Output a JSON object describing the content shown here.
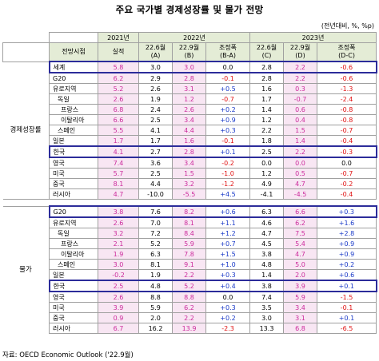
{
  "title": "주요 국가별 경제성장률 및 물가 전망",
  "unit": "(전년대비, %, %p)",
  "headers": {
    "year2021": "2021년",
    "year2022": "2022년",
    "year2023": "2023년",
    "outlook": "전망시점",
    "actual": "실적",
    "c22_6": "22.6월\n(A)",
    "c22_9": "22.9월\n(B)",
    "adj_ba": "조정폭\n(B-A)",
    "c23_6": "22.6월\n(C)",
    "c23_9": "22.9월\n(D)",
    "adj_dc": "조정폭\n(D-C)"
  },
  "sections": [
    {
      "label": "경제성장률",
      "rows": [
        {
          "name": "세계",
          "v": [
            "5.8",
            "3.0",
            "3.0",
            "0.0",
            "2.8",
            "2.2",
            "-0.6"
          ]
        },
        {
          "name": "G20",
          "v": [
            "6.2",
            "2.9",
            "2.8",
            "-0.1",
            "2.8",
            "2.2",
            "-0.6"
          ]
        },
        {
          "name": "유로지역",
          "v": [
            "5.2",
            "2.6",
            "3.1",
            "+0.5",
            "1.6",
            "0.3",
            "-1.3"
          ]
        },
        {
          "name": "독일",
          "v": [
            "2.6",
            "1.9",
            "1.2",
            "-0.7",
            "1.7",
            "-0.7",
            "-2.4"
          ]
        },
        {
          "name": "프랑스",
          "v": [
            "6.8",
            "2.4",
            "2.6",
            "+0.2",
            "1.4",
            "0.6",
            "-0.8"
          ]
        },
        {
          "name": "이탈리아",
          "v": [
            "6.6",
            "2.5",
            "3.4",
            "+0.9",
            "1.2",
            "0.4",
            "-0.8"
          ]
        },
        {
          "name": "스페인",
          "v": [
            "5.5",
            "4.1",
            "4.4",
            "+0.3",
            "2.2",
            "1.5",
            "-0.7"
          ]
        },
        {
          "name": "일본",
          "v": [
            "1.7",
            "1.7",
            "1.6",
            "-0.1",
            "1.8",
            "1.4",
            "-0.4"
          ]
        },
        {
          "name": "한국",
          "v": [
            "4.1",
            "2.7",
            "2.8",
            "+0.1",
            "2.5",
            "2.2",
            "-0.3"
          ]
        },
        {
          "name": "영국",
          "v": [
            "7.4",
            "3.6",
            "3.4",
            "-0.2",
            "0.0",
            "0.0",
            "0.0"
          ]
        },
        {
          "name": "미국",
          "v": [
            "5.7",
            "2.5",
            "1.5",
            "-1.0",
            "1.2",
            "0.5",
            "-0.7"
          ]
        },
        {
          "name": "중국",
          "v": [
            "8.1",
            "4.4",
            "3.2",
            "-1.2",
            "4.9",
            "4.7",
            "-0.2"
          ]
        },
        {
          "name": "러시아",
          "v": [
            "4.7",
            "-10.0",
            "-5.5",
            "+4.5",
            "-4.1",
            "-4.5",
            "-0.4"
          ]
        }
      ]
    },
    {
      "label": "물가",
      "rows": [
        {
          "name": "G20",
          "v": [
            "3.8",
            "7.6",
            "8.2",
            "+0.6",
            "6.3",
            "6.6",
            "+0.3"
          ]
        },
        {
          "name": "유로지역",
          "v": [
            "2.6",
            "7.0",
            "8.1",
            "+1.1",
            "4.6",
            "6.2",
            "+1.6"
          ]
        },
        {
          "name": "독일",
          "v": [
            "3.2",
            "7.2",
            "8.4",
            "+1.2",
            "4.7",
            "7.5",
            "+2.8"
          ]
        },
        {
          "name": "프랑스",
          "v": [
            "2.1",
            "5.2",
            "5.9",
            "+0.7",
            "4.5",
            "5.4",
            "+0.9"
          ]
        },
        {
          "name": "이탈리아",
          "v": [
            "1.9",
            "6.3",
            "7.8",
            "+1.5",
            "3.8",
            "4.7",
            "+0.9"
          ]
        },
        {
          "name": "스페인",
          "v": [
            "3.0",
            "8.1",
            "9.1",
            "+1.0",
            "4.8",
            "5.0",
            "+0.2"
          ]
        },
        {
          "name": "일본",
          "v": [
            "-0.2",
            "1.9",
            "2.2",
            "+0.3",
            "1.4",
            "2.0",
            "+0.6"
          ]
        },
        {
          "name": "한국",
          "v": [
            "2.5",
            "4.8",
            "5.2",
            "+0.4",
            "3.8",
            "3.9",
            "+0.1"
          ]
        },
        {
          "name": "영국",
          "v": [
            "2.6",
            "8.8",
            "8.8",
            "0.0",
            "7.4",
            "5.9",
            "-1.5"
          ]
        },
        {
          "name": "미국",
          "v": [
            "3.9",
            "5.9",
            "6.2",
            "+0.3",
            "3.5",
            "3.4",
            "-0.1"
          ]
        },
        {
          "name": "중국",
          "v": [
            "0.9",
            "2.0",
            "2.2",
            "+0.2",
            "3.0",
            "3.1",
            "+0.1"
          ]
        },
        {
          "name": "러시아",
          "v": [
            "6.7",
            "16.2",
            "13.9",
            "-2.3",
            "13.3",
            "6.8",
            "-6.5"
          ]
        }
      ]
    }
  ],
  "source": "자료: OECD Economic Outlook ('22.9월)",
  "colors": {
    "header_bg": "#e4ecd6",
    "actual_bg": "#f8e6f3",
    "actual_text": "#cc2a9c",
    "negative_text": "#e01010",
    "positive_text": "#1a3ac8",
    "highlight_border": "#2c2c9a"
  }
}
